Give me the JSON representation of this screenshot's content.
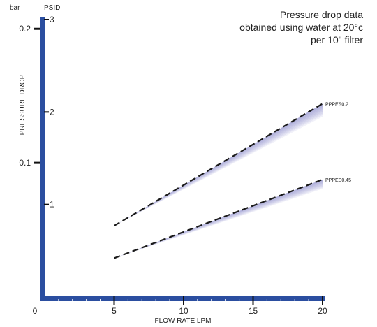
{
  "chart_data": {
    "type": "line",
    "annotation_lines": [
      "Pressure drop data",
      "obtained using water at 20°c",
      "per 10\" filter"
    ],
    "xlabel": "FLOW RATE LPM",
    "ylabel": "PRESSURE DROP",
    "left_unit_label": "bar",
    "right_unit_label": "PSID",
    "xlim": [
      0,
      20
    ],
    "ylim_psid": [
      0,
      3
    ],
    "x_ticks": [
      0,
      5,
      10,
      15,
      20
    ],
    "x_tick_labels": [
      "0",
      "5",
      "10",
      "15",
      "20"
    ],
    "psid_ticks": [
      1,
      2,
      3
    ],
    "psid_tick_labels": [
      "1",
      "2",
      "3"
    ],
    "bar_ticks_psid": [
      1.45,
      2.9
    ],
    "bar_tick_labels": [
      "0.1",
      "0.2"
    ],
    "grid": false,
    "axis_color": "#2b4ea0",
    "band_color": "#7b7fc4",
    "line_color": "#1a1a1a",
    "series": [
      {
        "name": "PPPES0.2",
        "x": [
          5,
          20
        ],
        "y_psid": [
          0.77,
          2.09
        ],
        "band_low_end_psid": 1.95
      },
      {
        "name": "PPPES0.45",
        "x": [
          5,
          20
        ],
        "y_psid": [
          0.42,
          1.27
        ],
        "band_low_end_psid": 1.17
      }
    ]
  }
}
